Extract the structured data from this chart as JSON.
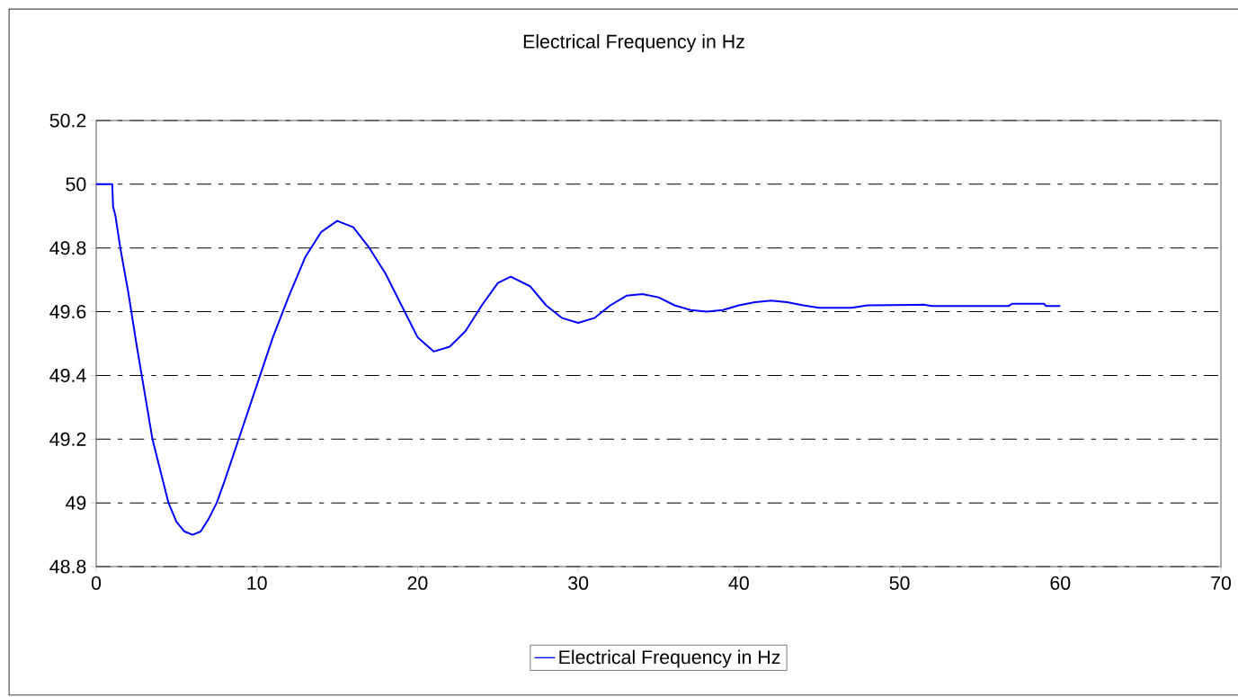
{
  "chart_data": {
    "type": "line",
    "title": "Electrical Frequency in Hz",
    "series": [
      {
        "name": "Electrical Frequency in Hz",
        "color": "#0000ff",
        "x": [
          0,
          1.0,
          1.05,
          1.2,
          1.5,
          2,
          2.5,
          3,
          3.5,
          4,
          4.5,
          5,
          5.5,
          6,
          6.5,
          7,
          7.5,
          8,
          9,
          10,
          11,
          12,
          13,
          14,
          15,
          16,
          17,
          18,
          19,
          20,
          21,
          22,
          23,
          24,
          25,
          25.8,
          27,
          28,
          29,
          30,
          31,
          32,
          33,
          34,
          35,
          36,
          37,
          38,
          39,
          40,
          41,
          42,
          43,
          44,
          45,
          47,
          48,
          51.5,
          52,
          56.8,
          57,
          59,
          59.1,
          60
        ],
        "values": [
          50,
          50,
          49.93,
          49.9,
          49.8,
          49.66,
          49.5,
          49.35,
          49.2,
          49.1,
          49.0,
          48.94,
          48.91,
          48.9,
          48.91,
          48.95,
          49.0,
          49.07,
          49.22,
          49.37,
          49.52,
          49.65,
          49.77,
          49.85,
          49.885,
          49.865,
          49.8,
          49.72,
          49.62,
          49.52,
          49.475,
          49.49,
          49.54,
          49.62,
          49.69,
          49.71,
          49.68,
          49.62,
          49.58,
          49.565,
          49.58,
          49.62,
          49.65,
          49.655,
          49.645,
          49.62,
          49.605,
          49.6,
          49.605,
          49.62,
          49.63,
          49.635,
          49.63,
          49.62,
          49.612,
          49.612,
          49.62,
          49.622,
          49.618,
          49.618,
          49.625,
          49.625,
          49.618,
          49.618
        ]
      }
    ],
    "xlim": [
      0,
      70
    ],
    "xticks": [
      0,
      10,
      20,
      30,
      40,
      50,
      60,
      70
    ],
    "ylim": [
      48.8,
      50.2
    ],
    "yticks": [
      48.8,
      49,
      49.2,
      49.4,
      49.6,
      49.8,
      50,
      50.2
    ],
    "grid": "y",
    "legend": "bottom",
    "marker": "none",
    "line_style": "solid"
  }
}
